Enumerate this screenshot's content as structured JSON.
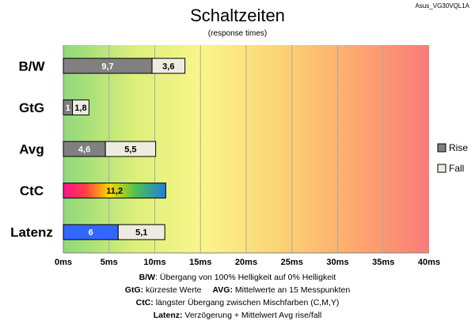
{
  "chart_data": {
    "type": "bar",
    "orientation": "horizontal",
    "stacked": true,
    "title": "Schaltzeiten",
    "subtitle": "(response times)",
    "model": "Asus_VG30VQL1A",
    "categories": [
      "B/W",
      "GtG",
      "Avg",
      "CtC",
      "Latenz"
    ],
    "series": [
      {
        "name": "Rise",
        "values": [
          9.7,
          1,
          4.6,
          11.2,
          6
        ],
        "labels": [
          "9,7",
          "1",
          "4,6",
          "11,2",
          "6"
        ],
        "color": "#808080"
      },
      {
        "name": "Fall",
        "values": [
          3.6,
          1.8,
          5.5,
          null,
          5.1
        ],
        "labels": [
          "3,6",
          "1,8",
          "5,5",
          "",
          "5,1"
        ],
        "color": "#eeece1"
      }
    ],
    "special_colors": {
      "CtC": "rainbow",
      "Latenz": "#3366ff"
    },
    "xlim": [
      0,
      40
    ],
    "xticks": [
      0,
      5,
      10,
      15,
      20,
      25,
      30,
      35,
      40
    ],
    "tick_labels": [
      "0ms",
      "5ms",
      "10ms",
      "15ms",
      "20ms",
      "25ms",
      "30ms",
      "35ms",
      "40ms"
    ],
    "grid": true,
    "background": "gradient green-yellow-red",
    "legend": {
      "position": "right",
      "entries": [
        "Rise",
        "Fall"
      ]
    }
  },
  "footnotes": [
    {
      "bold": "B/W",
      "text": ":  Übergang von 100% Helligkeit auf 0% Helligkeit"
    },
    {
      "bold": "GtG:",
      "text": " kürzeste  Werte",
      "bold2": "AVG:",
      "text2": " Mittelwerte  an 15 Messpunkten"
    },
    {
      "bold": "CtC:",
      "text": " längster Übergang  zwischen Mischfarben  (C,M,Y)"
    },
    {
      "bold": "Latenz:",
      "text": " Verzögerung  + Mittelwert Avg rise/fall"
    }
  ]
}
